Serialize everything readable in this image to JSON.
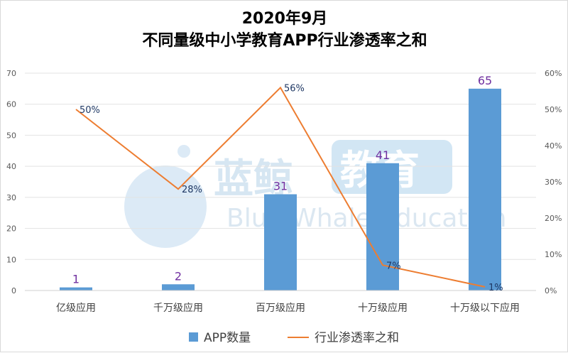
{
  "title": {
    "line1": "2020年9月",
    "line2": "不同量级中小学教育APP行业渗透率之和"
  },
  "watermark": {
    "cn_left": "蓝鲸",
    "cn_box": "教育",
    "en": "Blue Whale Education"
  },
  "colors": {
    "bar": "#5b9bd5",
    "line": "#ed7d31",
    "bar_label": "#7030a0",
    "line_label": "#1f3864"
  },
  "chart_data": {
    "type": "bar",
    "categories": [
      "亿级应用",
      "千万级应用",
      "百万级应用",
      "十万级应用",
      "十万级以下应用"
    ],
    "series": [
      {
        "name": "APP数量",
        "type": "bar",
        "axis": "left",
        "values": [
          1,
          2,
          31,
          41,
          65
        ]
      },
      {
        "name": "行业渗透率之和",
        "type": "line",
        "axis": "right",
        "values": [
          50,
          28,
          56,
          7,
          1
        ],
        "unit": "%"
      }
    ],
    "ylim": [
      0,
      70
    ],
    "y_ticks": [
      "0",
      "10",
      "20",
      "30",
      "40",
      "50",
      "60",
      "70"
    ],
    "y2lim": [
      0,
      60
    ],
    "y2_ticks": [
      "0%",
      "10%",
      "20%",
      "30%",
      "40%",
      "50%",
      "60%"
    ],
    "bar_labels": [
      "1",
      "2",
      "31",
      "41",
      "65"
    ],
    "line_labels": [
      "50%",
      "28%",
      "56%",
      "7%",
      "1%"
    ],
    "grid": true,
    "legend_position": "bottom"
  }
}
